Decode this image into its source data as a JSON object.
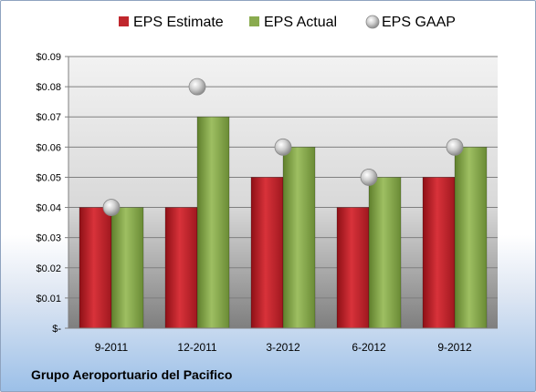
{
  "chart_data": {
    "type": "bar",
    "categories": [
      "9-2011",
      "12-2011",
      "3-2012",
      "6-2012",
      "9-2012"
    ],
    "series": [
      {
        "name": "EPS Estimate",
        "values": [
          0.04,
          0.04,
          0.05,
          0.04,
          0.05
        ],
        "color": "#c0272d"
      },
      {
        "name": "EPS Actual",
        "values": [
          0.04,
          0.07,
          0.06,
          0.05,
          0.06
        ],
        "color": "#8aab4f"
      },
      {
        "name": "EPS GAAP",
        "values": [
          0.04,
          0.08,
          0.06,
          0.05,
          0.06
        ],
        "color": "#b8b8b8",
        "mark": "circle"
      }
    ],
    "ylim": [
      0,
      0.09
    ],
    "yticks": [
      "$-",
      "$0.01",
      "$0.02",
      "$0.03",
      "$0.04",
      "$0.05",
      "$0.06",
      "$0.07",
      "$0.08",
      "$0.09"
    ],
    "grid": true,
    "legend": "top",
    "footer": "Grupo Aeroportuario del Pacifico"
  }
}
